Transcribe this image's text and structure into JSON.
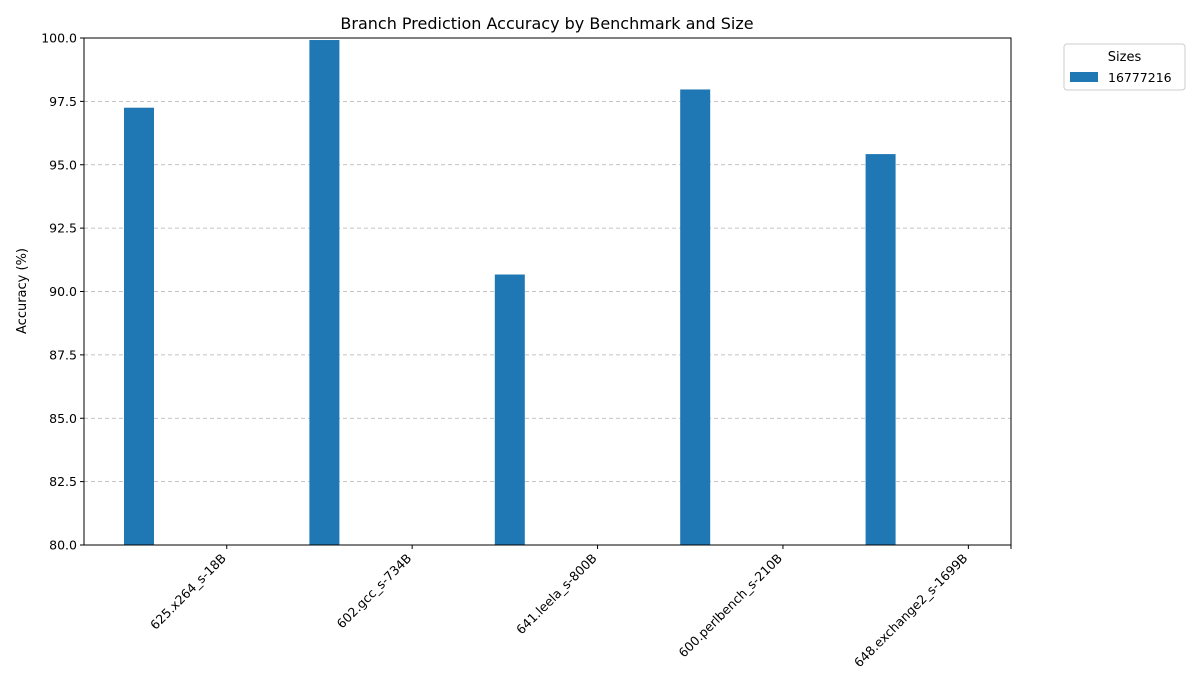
{
  "chart_data": {
    "type": "bar",
    "title": "Branch Prediction Accuracy by Benchmark and Size",
    "xlabel": "",
    "ylabel": "Accuracy (%)",
    "ylim": [
      80,
      100
    ],
    "yticks": [
      "80.0",
      "82.5",
      "85.0",
      "87.5",
      "90.0",
      "92.5",
      "95.0",
      "97.5",
      "100.0"
    ],
    "grid": "y",
    "categories": [
      "625.x264_s-18B",
      "602.gcc_s-734B",
      "641.leela_s-800B",
      "600.perlbench_s-210B",
      "648.exchange2_s-1699B"
    ],
    "series": [
      {
        "name": "16777216",
        "color": "#1f77b4",
        "values": [
          97.25,
          99.92,
          90.67,
          97.97,
          95.42
        ]
      }
    ],
    "legend": {
      "title": "Sizes",
      "position": "outside-top-right"
    }
  }
}
